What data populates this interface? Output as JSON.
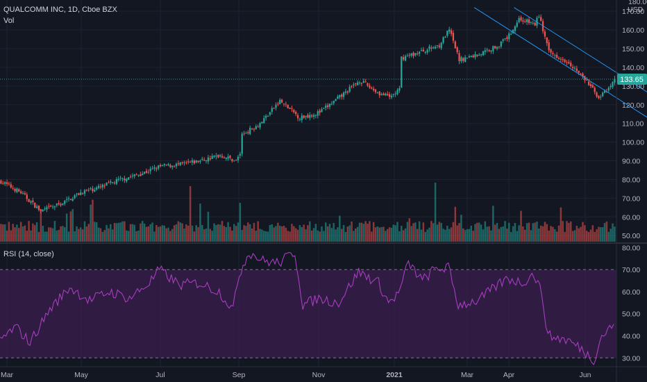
{
  "header": {
    "title": "QUALCOMM INC, 1D, Cboe BZX",
    "vol_label": "Vol",
    "rsi_label": "RSI (14, close)"
  },
  "colors": {
    "background": "#131722",
    "grid": "#1f2330",
    "up": "#26a69a",
    "down": "#ef5350",
    "channel": "#2196f3",
    "rsi_line": "#a83dbf",
    "rsi_band": "#3b1f4f",
    "last_price": "#26a69a"
  },
  "chart_data": {
    "type": "candlestick",
    "x_ticks": [
      "Mar",
      "May",
      "Jul",
      "Sep",
      "Nov",
      "2021",
      "Mar",
      "Apr",
      "Jun"
    ],
    "price_axis": {
      "unit": "USD",
      "top_label": "180.00",
      "ticks": [
        "170.00",
        "160.00",
        "150.00",
        "140.00",
        "130.00",
        "120.00",
        "110.00",
        "100.00",
        "90.00",
        "80.00",
        "70.00",
        "60.00",
        "50.00"
      ],
      "range": [
        46,
        176
      ]
    },
    "last_price": 133.65,
    "last_price_label": "133.65",
    "price_anchors": [
      [
        0,
        79
      ],
      [
        10,
        73
      ],
      [
        20,
        63
      ],
      [
        30,
        67
      ],
      [
        40,
        73
      ],
      [
        50,
        76
      ],
      [
        60,
        80
      ],
      [
        70,
        83
      ],
      [
        80,
        87
      ],
      [
        90,
        88
      ],
      [
        100,
        90
      ],
      [
        110,
        93
      ],
      [
        118,
        90
      ],
      [
        120,
        94
      ],
      [
        121,
        104
      ],
      [
        130,
        110
      ],
      [
        140,
        122
      ],
      [
        150,
        113
      ],
      [
        160,
        116
      ],
      [
        170,
        124
      ],
      [
        180,
        133
      ],
      [
        190,
        126
      ],
      [
        195,
        124
      ],
      [
        200,
        128
      ],
      [
        201,
        145
      ],
      [
        210,
        148
      ],
      [
        220,
        152
      ],
      [
        225,
        160
      ],
      [
        230,
        144
      ],
      [
        240,
        147
      ],
      [
        250,
        152
      ],
      [
        255,
        157
      ],
      [
        260,
        166
      ],
      [
        268,
        163
      ],
      [
        270,
        168
      ],
      [
        275,
        148
      ],
      [
        285,
        143
      ],
      [
        295,
        131
      ],
      [
        300,
        124
      ],
      [
        305,
        128
      ],
      [
        308,
        133.65
      ]
    ],
    "channel_lines": [
      [
        [
          238,
          172
        ],
        [
          340,
          103
        ]
      ],
      [
        [
          258,
          172
        ],
        [
          360,
          103
        ]
      ]
    ],
    "rsi": {
      "ticks": [
        "80.00",
        "70.00",
        "60.00",
        "50.00",
        "40.00",
        "30.00"
      ],
      "range": [
        26,
        82
      ],
      "band": [
        30,
        70
      ],
      "anchors": [
        [
          0,
          38
        ],
        [
          8,
          44
        ],
        [
          15,
          37
        ],
        [
          25,
          52
        ],
        [
          35,
          62
        ],
        [
          45,
          56
        ],
        [
          55,
          60
        ],
        [
          65,
          57
        ],
        [
          75,
          64
        ],
        [
          80,
          70
        ],
        [
          90,
          63
        ],
        [
          100,
          64
        ],
        [
          110,
          60
        ],
        [
          117,
          52
        ],
        [
          120,
          68
        ],
        [
          125,
          78
        ],
        [
          132,
          74
        ],
        [
          140,
          73
        ],
        [
          148,
          78
        ],
        [
          152,
          54
        ],
        [
          160,
          57
        ],
        [
          170,
          55
        ],
        [
          180,
          69
        ],
        [
          190,
          64
        ],
        [
          195,
          55
        ],
        [
          200,
          59
        ],
        [
          205,
          73
        ],
        [
          212,
          65
        ],
        [
          218,
          70
        ],
        [
          225,
          71
        ],
        [
          230,
          54
        ],
        [
          240,
          56
        ],
        [
          250,
          63
        ],
        [
          255,
          66
        ],
        [
          262,
          64
        ],
        [
          268,
          68
        ],
        [
          272,
          59
        ],
        [
          275,
          40
        ],
        [
          285,
          38
        ],
        [
          292,
          34
        ],
        [
          298,
          29
        ],
        [
          302,
          40
        ],
        [
          308,
          45
        ]
      ]
    }
  }
}
